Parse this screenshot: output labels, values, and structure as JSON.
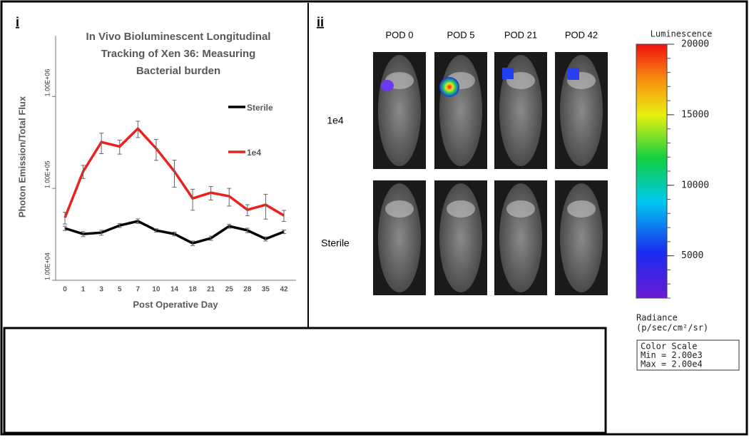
{
  "chart_data": {
    "type": "line",
    "title_lines": [
      "In Vivo Bioluminescent Longitudinal",
      "Tracking of Xen 36: Measuring",
      "Bacterial burden"
    ],
    "x_label": "Post Operative Day",
    "y_label": "Photon Emission/Total Flux",
    "categories": [
      "0",
      "1",
      "3",
      "5",
      "7",
      "10",
      "14",
      "18",
      "21",
      "25",
      "28",
      "35",
      "42"
    ],
    "series": [
      {
        "name": "Sterile",
        "color": "#000000",
        "values": [
          36800,
          31900,
          33000,
          39500,
          44000,
          34900,
          31900,
          25300,
          28700,
          38800,
          34900,
          28200,
          33700
        ],
        "errors": [
          2000,
          2000,
          2000,
          2000,
          2500,
          1500,
          1500,
          1500,
          1500,
          2000,
          2000,
          1500,
          1500
        ]
      },
      {
        "name": "1e4",
        "color": "#e8231f",
        "values": [
          48000,
          153000,
          319000,
          286000,
          448000,
          272000,
          153000,
          77800,
          89800,
          82200,
          58500,
          66300,
          50700
        ],
        "errors": [
          7000,
          25000,
          80000,
          50000,
          90000,
          70000,
          50000,
          20000,
          15000,
          18000,
          8000,
          20000,
          7000
        ]
      }
    ],
    "log_y": true,
    "ylim": [
      10000,
      4600000
    ],
    "yticks": [
      {
        "value": 10000,
        "label": "1.00E+04"
      },
      {
        "value": 100000,
        "label": "1.00E+05"
      },
      {
        "value": 1000000,
        "label": "1.00E+06"
      }
    ]
  },
  "panels": {
    "left": "i",
    "right": "ii"
  },
  "imaging": {
    "columns": [
      "POD 0",
      "POD 5",
      "POD 21",
      "POD 42"
    ],
    "rows": [
      "1e4",
      "Sterile"
    ]
  },
  "colorbar": {
    "title": "Luminescence",
    "range": [
      2000,
      20000
    ],
    "ticks": [
      20000,
      15000,
      10000,
      5000
    ],
    "unit_lines": [
      "Radiance",
      "(p/sec/cm²/sr)"
    ],
    "scale_lines": [
      "Color Scale",
      "Min = 2.00e3",
      "Max = 2.00e4"
    ]
  }
}
